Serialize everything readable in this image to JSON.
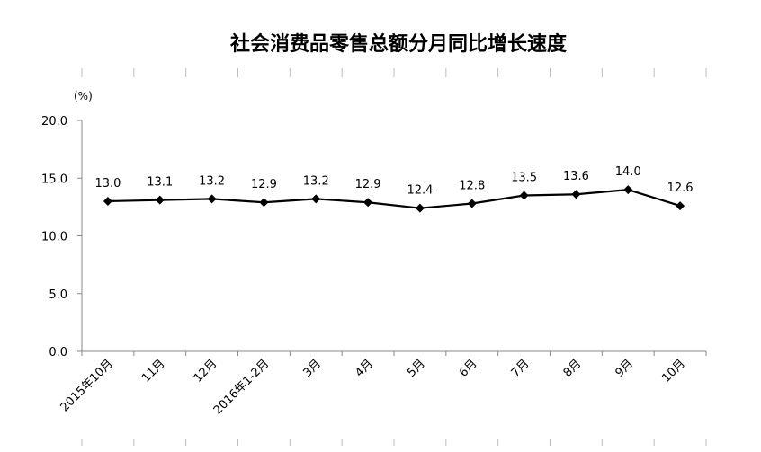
{
  "chart_data": {
    "type": "line",
    "title": "社会消费品零售总额分月同比增长速度",
    "ylabel": "(%)",
    "xlabel": "",
    "ylim": [
      0,
      20
    ],
    "yticks": [
      "0.0",
      "5.0",
      "10.0",
      "15.0",
      "20.0"
    ],
    "grid": false,
    "legend": "none",
    "categories": [
      "2015年10月",
      "11月",
      "12月",
      "2016年1-2月",
      "3月",
      "4月",
      "5月",
      "6月",
      "7月",
      "8月",
      "9月",
      "10月"
    ],
    "series": [
      {
        "values": [
          13.0,
          13.1,
          13.2,
          12.9,
          13.2,
          12.9,
          12.4,
          12.8,
          13.5,
          13.6,
          14.0,
          12.6
        ],
        "labels": [
          "13.0",
          "13.1",
          "13.2",
          "12.9",
          "13.2",
          "12.9",
          "12.4",
          "12.8",
          "13.5",
          "13.6",
          "14.0",
          "12.6"
        ],
        "color": "#000000",
        "marker": "diamond"
      }
    ]
  }
}
